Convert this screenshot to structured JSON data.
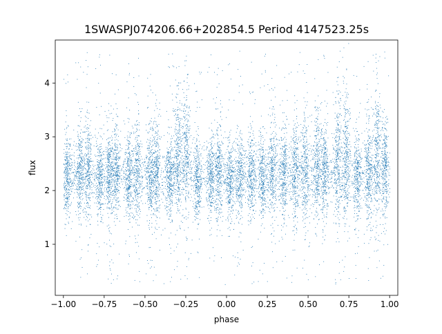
{
  "chart_data": {
    "type": "scatter",
    "title": "1SWASPJ074206.66+202854.5 Period 4147523.25s",
    "xlabel": "phase",
    "ylabel": "flux",
    "xlim": [
      -1.05,
      1.05
    ],
    "ylim": [
      0.05,
      4.8
    ],
    "x_ticks": [
      -1.0,
      -0.75,
      -0.5,
      -0.25,
      0.0,
      0.25,
      0.5,
      0.75,
      1.0
    ],
    "x_tick_labels": [
      "−1.00",
      "−0.75",
      "−0.50",
      "−0.25",
      "0.00",
      "0.25",
      "0.50",
      "0.75",
      "1.00"
    ],
    "y_ticks": [
      1,
      2,
      3,
      4
    ],
    "y_tick_labels": [
      "1",
      "2",
      "3",
      "4"
    ],
    "grid": false,
    "marker_color": "#1f77b4",
    "series": [
      {
        "x_range": [
          -1.0,
          1.0
        ],
        "baseline_flux": 2.3,
        "typical_spread": [
          1.5,
          3.2
        ],
        "outlier_range": [
          0.25,
          4.6
        ],
        "clusters": [
          {
            "x": -0.98,
            "y_top": 3.0
          },
          {
            "x": -0.9,
            "y_top": 3.1
          },
          {
            "x": -0.85,
            "y_top": 3.2
          },
          {
            "x": -0.78,
            "y_top": 2.9
          },
          {
            "x": -0.72,
            "y_top": 3.1
          },
          {
            "x": -0.68,
            "y_top": 3.2
          },
          {
            "x": -0.6,
            "y_top": 3.1
          },
          {
            "x": -0.55,
            "y_top": 3.2
          },
          {
            "x": -0.47,
            "y_top": 3.1
          },
          {
            "x": -0.43,
            "y_top": 3.3
          },
          {
            "x": -0.35,
            "y_top": 3.0
          },
          {
            "x": -0.3,
            "y_top": 3.7
          },
          {
            "x": -0.25,
            "y_top": 3.9
          },
          {
            "x": -0.18,
            "y_top": 2.8
          },
          {
            "x": -0.1,
            "y_top": 2.9
          },
          {
            "x": -0.05,
            "y_top": 3.2
          },
          {
            "x": 0.02,
            "y_top": 2.8
          },
          {
            "x": 0.08,
            "y_top": 3.0
          },
          {
            "x": 0.15,
            "y_top": 3.1
          },
          {
            "x": 0.22,
            "y_top": 3.0
          },
          {
            "x": 0.28,
            "y_top": 3.3
          },
          {
            "x": 0.35,
            "y_top": 3.1
          },
          {
            "x": 0.42,
            "y_top": 3.2
          },
          {
            "x": 0.48,
            "y_top": 3.3
          },
          {
            "x": 0.55,
            "y_top": 3.4
          },
          {
            "x": 0.6,
            "y_top": 3.3
          },
          {
            "x": 0.68,
            "y_top": 3.7
          },
          {
            "x": 0.73,
            "y_top": 3.8
          },
          {
            "x": 0.8,
            "y_top": 3.0
          },
          {
            "x": 0.87,
            "y_top": 3.3
          },
          {
            "x": 0.92,
            "y_top": 3.9
          },
          {
            "x": 0.97,
            "y_top": 3.3
          }
        ]
      }
    ]
  }
}
